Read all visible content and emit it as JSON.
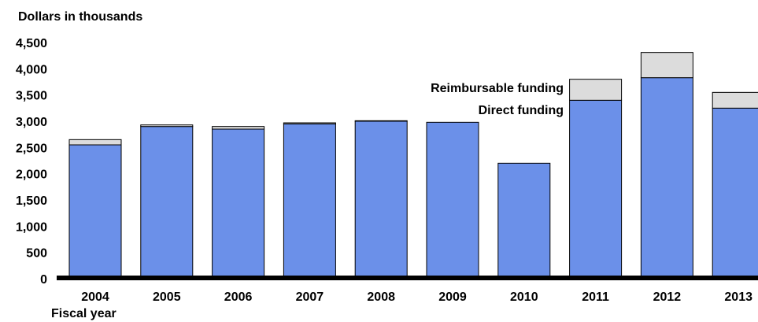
{
  "chart_data": {
    "type": "bar",
    "stacked": true,
    "ylabel": "Dollars in thousands",
    "xlabel": "Fiscal year",
    "ylim": [
      0,
      4500
    ],
    "yticks": [
      0,
      500,
      1000,
      1500,
      2000,
      2500,
      3000,
      3500,
      4000,
      4500
    ],
    "ytick_labels": [
      "0",
      "500",
      "1,000",
      "1,500",
      "2,000",
      "2,500",
      "3,000",
      "3,500",
      "4,000",
      "4,500"
    ],
    "categories": [
      "2004",
      "2005",
      "2006",
      "2007",
      "2008",
      "2009",
      "2010",
      "2011",
      "2012",
      "2013"
    ],
    "series": [
      {
        "name": "Direct funding",
        "color": "#6b90e9",
        "values": [
          2550,
          2900,
          2850,
          2950,
          3000,
          2980,
          2200,
          3400,
          3830,
          3250
        ]
      },
      {
        "name": "Reimbursable funding",
        "color": "#dcdcdc",
        "values": [
          100,
          30,
          50,
          20,
          10,
          0,
          0,
          400,
          480,
          300
        ]
      }
    ],
    "grid": false,
    "legend": "inline labels near 2010-2011"
  }
}
